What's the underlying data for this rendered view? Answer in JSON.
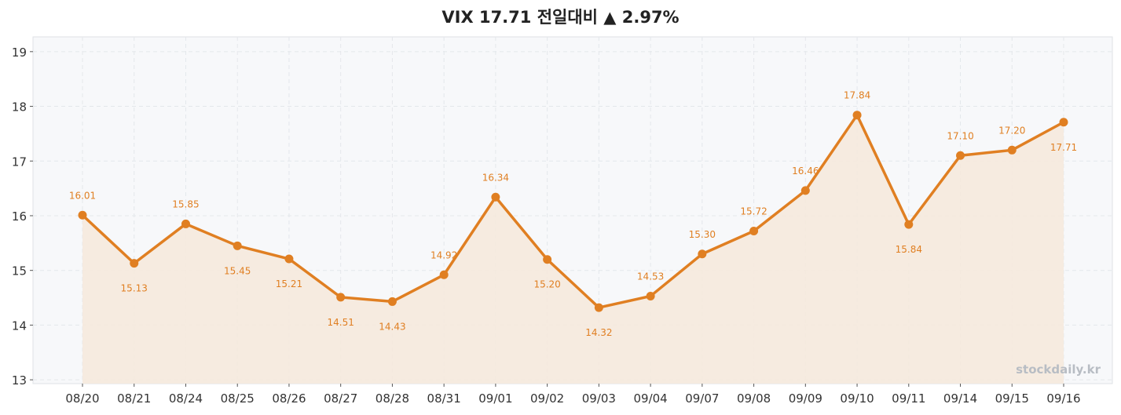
{
  "chart_data": {
    "type": "line",
    "title": "VIX  17.71  전일대비 ▲ 2.97%",
    "categories": [
      "08/20",
      "08/21",
      "08/24",
      "08/25",
      "08/26",
      "08/27",
      "08/28",
      "08/31",
      "09/01",
      "09/02",
      "09/03",
      "09/04",
      "09/07",
      "09/08",
      "09/09",
      "09/10",
      "09/11",
      "09/14",
      "09/15",
      "09/16"
    ],
    "series": [
      {
        "values": [
          16.01,
          15.13,
          15.85,
          15.45,
          15.21,
          14.51,
          14.43,
          14.92,
          16.34,
          15.2,
          14.32,
          14.53,
          15.3,
          15.72,
          16.46,
          17.84,
          15.84,
          17.1,
          17.2,
          17.71
        ],
        "labels": [
          "16.01",
          "15.13",
          "15.85",
          "15.45",
          "15.21",
          "14.51",
          "14.43",
          "14.92",
          "16.34",
          "15.20",
          "14.32",
          "14.53",
          "15.30",
          "15.72",
          "16.46",
          "17.84",
          "15.84",
          "17.10",
          "17.20",
          "17.71"
        ],
        "color": "#e07f22",
        "fill_color": "#f5e9dd"
      }
    ],
    "yticks": [
      13,
      14,
      15,
      16,
      17,
      18,
      19
    ],
    "ylim": [
      12.93,
      19.27
    ],
    "grid": true,
    "plot_background": "#f7f8fa",
    "watermark": "stockdaily.kr"
  }
}
